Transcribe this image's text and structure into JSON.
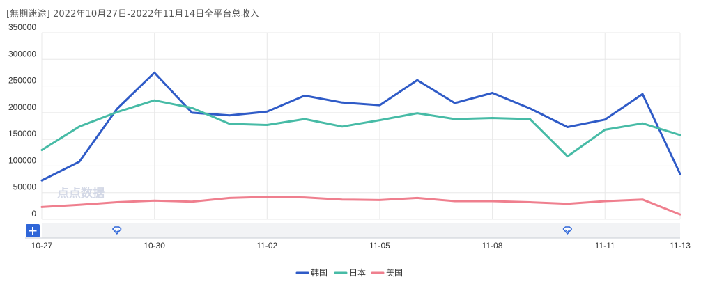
{
  "chart_data": {
    "type": "line",
    "title": "[無期迷途]  2022年10月27日-2022年11月14日全平台总收入",
    "categories": [
      "10-27",
      "10-28",
      "10-29",
      "10-30",
      "10-31",
      "11-01",
      "11-02",
      "11-03",
      "11-04",
      "11-05",
      "11-06",
      "11-07",
      "11-08",
      "11-09",
      "11-10",
      "11-11",
      "11-12",
      "11-13"
    ],
    "x_tick_labels": [
      "10-27",
      "10-30",
      "11-02",
      "11-05",
      "11-08",
      "11-11",
      "11-13"
    ],
    "y_ticks": [
      0,
      50000,
      100000,
      150000,
      200000,
      250000,
      300000,
      350000
    ],
    "ylim": [
      0,
      350000
    ],
    "xlabel": "",
    "ylabel": "",
    "grid": true,
    "legend_position": "bottom-center",
    "series": [
      {
        "name": "韩国",
        "color": "#2f5bc7",
        "values": [
          73000,
          108000,
          207000,
          275000,
          200000,
          195000,
          202000,
          232000,
          219000,
          214000,
          261000,
          218000,
          237000,
          208000,
          173000,
          187000,
          235000,
          85000
        ]
      },
      {
        "name": "日本",
        "color": "#47bba6",
        "values": [
          130000,
          174000,
          201000,
          223000,
          209000,
          179000,
          177000,
          188000,
          174000,
          186000,
          199000,
          188000,
          190000,
          188000,
          118000,
          168000,
          180000,
          158000
        ]
      },
      {
        "name": "美国",
        "color": "#ef7f8e",
        "values": [
          23000,
          27000,
          32000,
          35000,
          33000,
          40000,
          42000,
          41000,
          37000,
          36000,
          40000,
          34000,
          34000,
          32000,
          29000,
          34000,
          37000,
          9000
        ]
      }
    ],
    "slider_markers": [
      "10-29",
      "11-10"
    ],
    "watermark": "点点数据"
  },
  "icons": {
    "zoom": "plus-icon",
    "marker": "diamond-marker-icon"
  },
  "colors": {
    "grid": "#e8e8e8",
    "slider_bg": "#f2f3f5",
    "slider_button": "#2f66d8"
  }
}
